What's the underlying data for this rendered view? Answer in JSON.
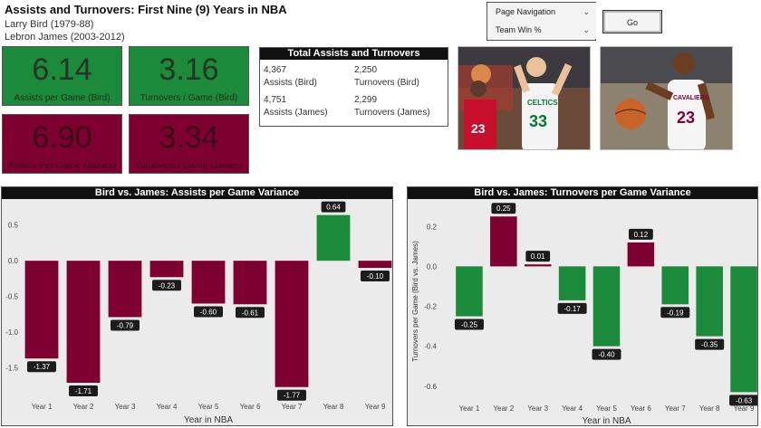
{
  "header": {
    "title": "Assists and Turnovers: First Nine (9) Years in NBA",
    "line1": "Larry Bird (1979-88)",
    "line2": "Lebron James (2003-2012)"
  },
  "kpis": [
    {
      "value": "6.14",
      "label": "Assists per Game (Bird)",
      "color": "#1b8a3b"
    },
    {
      "value": "3.16",
      "label": "Turnovers / Game (Bird)",
      "color": "#1b8a3b"
    },
    {
      "value": "6.90",
      "label": "Assists Per Game (James)",
      "color": "#7e0030"
    },
    {
      "value": "3.34",
      "label": "Turnovers / Game (James)",
      "color": "#7e0030"
    }
  ],
  "totals": {
    "title": "Total Assists and Turnovers",
    "bird_assists_value": "4,367",
    "bird_assists_label": "Assists (Bird)",
    "bird_turnovers_value": "2,250",
    "bird_turnovers_label": "Turnovers (Bird)",
    "james_assists_value": "4,751",
    "james_assists_label": "Assists (James)",
    "james_turnovers_value": "2,299",
    "james_turnovers_label": "Turnovers (James)"
  },
  "navigation": {
    "page_navigation_label": "Page Navigation",
    "selected_page": "Team Win %",
    "go_label": "Go"
  },
  "colors": {
    "positive": "#1b8a3b",
    "negative": "#7e0030"
  },
  "chart_data": [
    {
      "type": "bar",
      "title": "Bird vs. James: Assists per Game Variance",
      "xlabel": "Year in NBA",
      "ylabel": "",
      "categories": [
        "Year 1",
        "Year 2",
        "Year 3",
        "Year 4",
        "Year 5",
        "Year 6",
        "Year 7",
        "Year 8",
        "Year 9"
      ],
      "values": [
        -1.37,
        -1.71,
        -0.79,
        -0.23,
        -0.6,
        -0.61,
        -1.77,
        0.64,
        -0.1
      ],
      "labels": [
        "-1.37",
        "-1.71",
        "-0.79",
        "-0.23",
        "-0.60",
        "-0.61",
        "-1.77",
        "0.64",
        "-0.10"
      ],
      "ylim": [
        -1.9,
        0.75
      ],
      "yticks": [
        0.5,
        0.0,
        -0.5,
        -1.0,
        -1.5
      ],
      "ytick_labels": [
        "0.5",
        "0.0",
        "-0.5",
        "-1.0",
        "-1.5"
      ],
      "positive_color": "#1b8a3b",
      "negative_color": "#7e0030"
    },
    {
      "type": "bar",
      "title": "Bird vs. James: Turnovers per Game Variance",
      "xlabel": "Year in NBA",
      "ylabel": "Turnovers per Game (Bird vs. James)",
      "categories": [
        "Year 1",
        "Year 2",
        "Year 3",
        "Year 4",
        "Year 5",
        "Year 6",
        "Year 7",
        "Year 8",
        "Year 9"
      ],
      "values": [
        -0.25,
        0.25,
        0.01,
        -0.17,
        -0.4,
        0.12,
        -0.19,
        -0.35,
        -0.63
      ],
      "labels": [
        "-0.25",
        "0.25",
        "0.01",
        "-0.17",
        "-0.40",
        "0.12",
        "-0.19",
        "-0.35",
        "-0.63"
      ],
      "ylim": [
        -0.66,
        0.31
      ],
      "yticks": [
        0.2,
        0.0,
        -0.2,
        -0.4,
        -0.6
      ],
      "ytick_labels": [
        "0.2",
        "0.0",
        "-0.2",
        "-0.4",
        "-0.6"
      ],
      "positive_color": "#7e0030",
      "negative_color": "#1b8a3b"
    }
  ]
}
